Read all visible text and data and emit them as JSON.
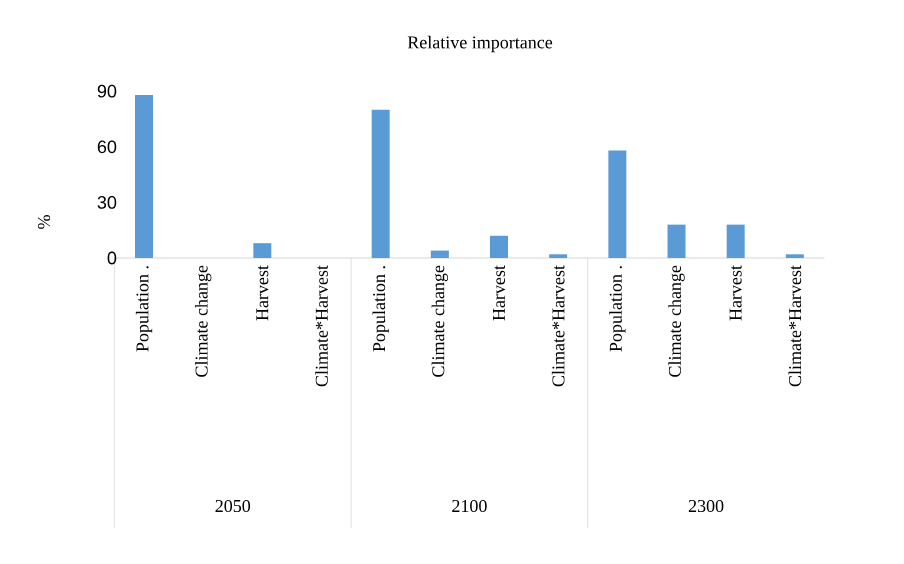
{
  "chart_data": {
    "type": "bar",
    "title": "Relative importance",
    "ylabel": "%",
    "categories": [
      "Population .",
      "Climate change",
      "Harvest",
      "Climate*Harvest",
      "Population .",
      "Climate change",
      "Harvest",
      "Climate*Harvest",
      "Population .",
      "Climate change",
      "Harvest",
      "Climate*Harvest"
    ],
    "values": [
      88,
      0,
      8,
      0,
      80,
      4,
      12,
      2,
      58,
      18,
      18,
      2
    ],
    "color": "#5b9bd5",
    "ylim": [
      0,
      90
    ],
    "yticks": [
      0,
      30,
      60,
      90
    ],
    "annotations": [
      "2050",
      "2100",
      "2300"
    ]
  }
}
